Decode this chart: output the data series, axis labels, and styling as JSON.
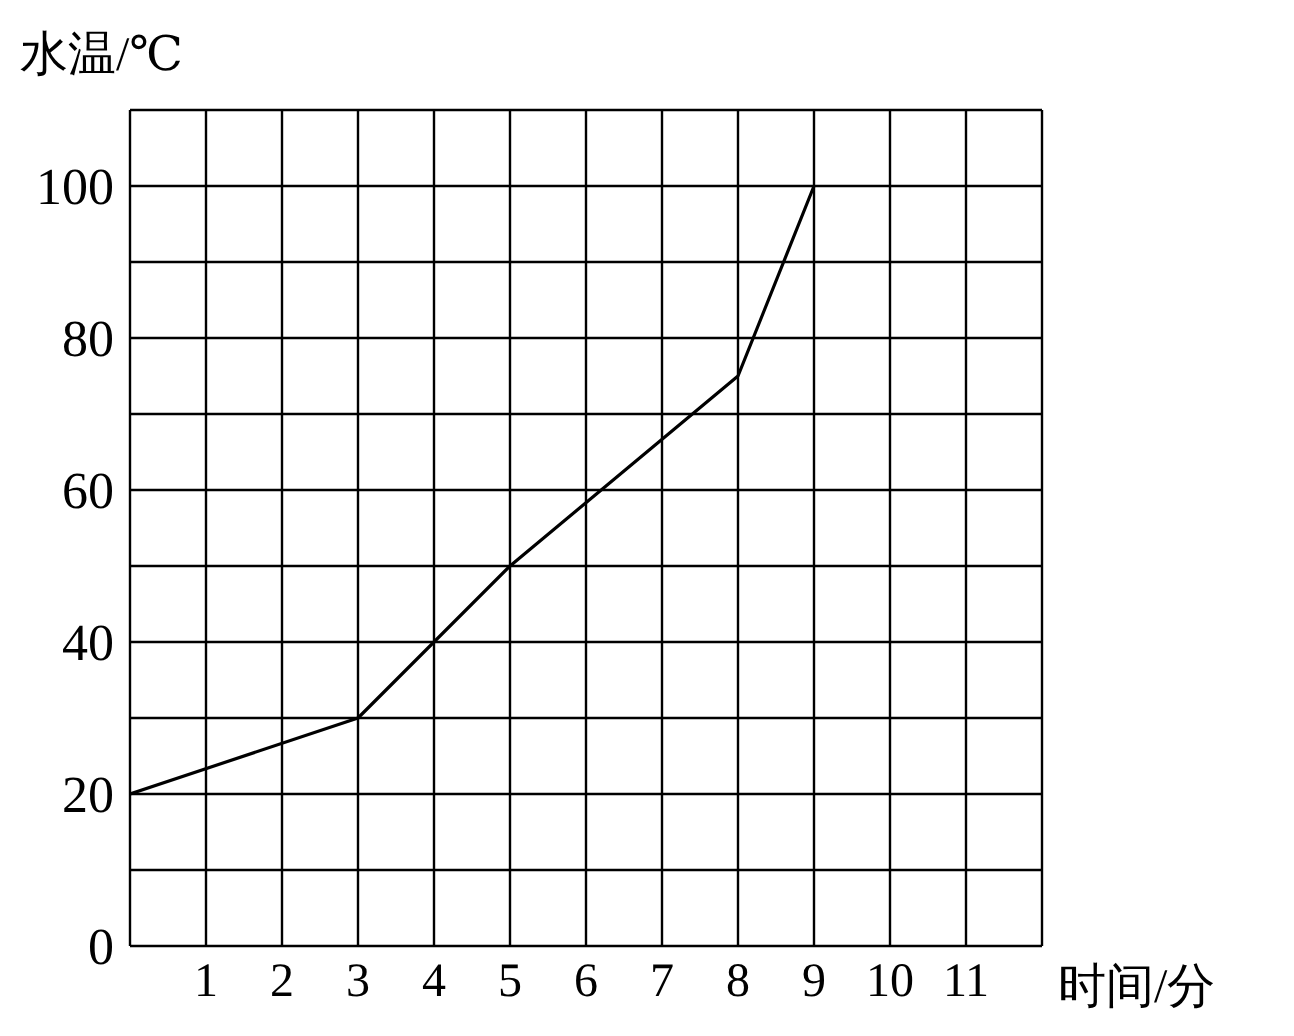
{
  "chart_data": {
    "type": "line",
    "xlabel": "时间/分",
    "ylabel": "水温/℃",
    "x": [
      0,
      3,
      5,
      8,
      9
    ],
    "values": [
      20,
      30,
      50,
      75,
      100
    ],
    "color": "#000000",
    "xlim": [
      0,
      12
    ],
    "xticks": [
      {
        "value": 0,
        "label": null
      },
      1,
      2,
      3,
      4,
      5,
      6,
      7,
      8,
      9,
      10,
      11,
      {
        "value": 12,
        "label": null
      }
    ],
    "ylim": [
      0,
      110
    ],
    "yticks": [
      0,
      {
        "value": 10,
        "label": null
      },
      20,
      {
        "value": 30,
        "label": null
      },
      40,
      {
        "value": 50,
        "label": null
      },
      60,
      {
        "value": 70,
        "label": null
      },
      80,
      {
        "value": 90,
        "label": null
      },
      100,
      {
        "value": 110,
        "label": null
      }
    ],
    "grid": true
  }
}
